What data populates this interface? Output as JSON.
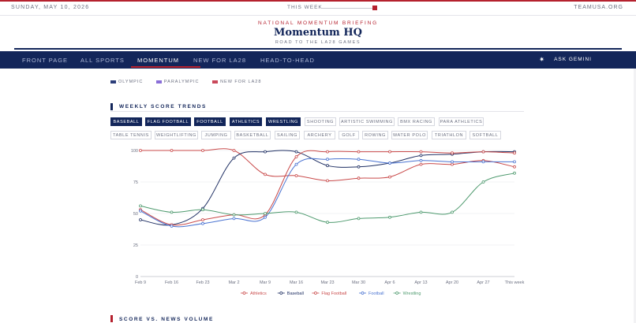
{
  "topbar": {
    "date": "SUNDAY, MAY 10, 2026",
    "week_label": "THIS WEEK",
    "site": "TEAMUSA.ORG"
  },
  "masthead": {
    "kicker": "NATIONAL MOMENTUM BRIEFING",
    "title": "Momentum HQ",
    "subtitle": "ROAD TO THE LA28 GAMES"
  },
  "nav": {
    "items": [
      "FRONT PAGE",
      "ALL SPORTS",
      "MOMENTUM",
      "NEW FOR LA28",
      "HEAD-TO-HEAD"
    ],
    "active": "MOMENTUM",
    "ask": "ASK GEMINI"
  },
  "category_legend": [
    {
      "label": "OLYMPIC",
      "color": "#2c3e7a"
    },
    {
      "label": "PARALYMPIC",
      "color": "#8a6fd8"
    },
    {
      "label": "NEW FOR LA28",
      "color": "#c9485a"
    }
  ],
  "section_title": "WEEKLY SCORE TRENDS",
  "next_section_title": "SCORE VS. NEWS VOLUME",
  "sport_chips": [
    {
      "label": "BASEBALL",
      "selected": true
    },
    {
      "label": "FLAG FOOTBALL",
      "selected": true
    },
    {
      "label": "FOOTBALL",
      "selected": true
    },
    {
      "label": "ATHLETICS",
      "selected": true
    },
    {
      "label": "WRESTLING",
      "selected": true
    },
    {
      "label": "SHOOTING",
      "selected": false
    },
    {
      "label": "ARTISTIC SWIMMING",
      "selected": false
    },
    {
      "label": "BMX RACING",
      "selected": false
    },
    {
      "label": "PARA ATHLETICS",
      "selected": false
    },
    {
      "label": "TABLE TENNIS",
      "selected": false
    },
    {
      "label": "WEIGHTLIFTING",
      "selected": false
    },
    {
      "label": "JUMPING",
      "selected": false
    },
    {
      "label": "BASKETBALL",
      "selected": false
    },
    {
      "label": "SAILING",
      "selected": false
    },
    {
      "label": "ARCHERY",
      "selected": false
    },
    {
      "label": "GOLF",
      "selected": false
    },
    {
      "label": "ROWING",
      "selected": false
    },
    {
      "label": "WATER POLO",
      "selected": false
    },
    {
      "label": "TRIATHLON",
      "selected": false
    },
    {
      "label": "SOFTBALL",
      "selected": false
    }
  ],
  "chart_data": {
    "type": "line",
    "title": "",
    "xlabel": "",
    "ylabel": "",
    "ylim": [
      0,
      100
    ],
    "yticks": [
      0,
      25,
      50,
      75,
      100
    ],
    "grid": true,
    "legend": "bottom",
    "categories": [
      "Feb 9",
      "Feb 16",
      "Feb 23",
      "Mar 2",
      "Mar 9",
      "Mar 16",
      "Mar 23",
      "Mar 30",
      "Apr 6",
      "Apr 13",
      "Apr 20",
      "Apr 27",
      "This week"
    ],
    "series": [
      {
        "name": "Athletics",
        "color": "#c94a4a",
        "values": [
          100,
          100,
          100,
          100,
          81,
          80,
          76,
          78,
          79,
          89,
          89,
          92,
          87
        ]
      },
      {
        "name": "Baseball",
        "color": "#1f2f63",
        "values": [
          45,
          41,
          54,
          94,
          99,
          99,
          88,
          87,
          90,
          96,
          97,
          99,
          99
        ]
      },
      {
        "name": "Flag Football",
        "color": "#c94a4a",
        "values": [
          53,
          41,
          45,
          49,
          49,
          95,
          99,
          99,
          99,
          99,
          98,
          99,
          98
        ]
      },
      {
        "name": "Football",
        "color": "#4a73d1",
        "values": [
          52,
          40,
          42,
          46,
          47,
          89,
          93,
          93,
          90,
          92,
          91,
          91,
          91
        ]
      },
      {
        "name": "Wrestling",
        "color": "#4e9a6e",
        "values": [
          56,
          51,
          53,
          49,
          50,
          51,
          43,
          46,
          47,
          51,
          51,
          75,
          82
        ]
      }
    ]
  }
}
